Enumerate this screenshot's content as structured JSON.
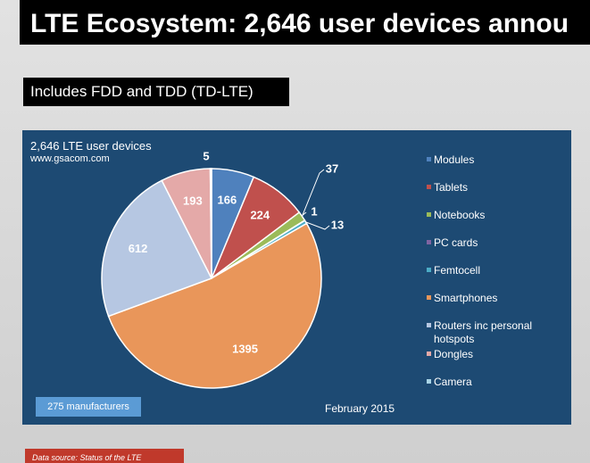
{
  "header": {
    "title": "LTE Ecosystem: 2,646 user devices annou",
    "subtitle": "Includes FDD and TDD (TD-LTE)"
  },
  "chart_data": {
    "type": "pie",
    "title": "2,646 LTE user devices",
    "source": "www.gsacom.com",
    "categories": [
      "Modules",
      "Tablets",
      "Notebooks",
      "PC cards",
      "Femtocell",
      "Smartphones",
      "Routers inc personal hotspots",
      "Dongles",
      "Camera"
    ],
    "values": [
      166,
      224,
      37,
      1,
      13,
      1395,
      612,
      193,
      5
    ],
    "colors": [
      "#4f81bd",
      "#c0504d",
      "#9bbb59",
      "#8064a2",
      "#4bacc6",
      "#e9965a",
      "#b6c7e2",
      "#e4a9a8",
      "#a8d4e6"
    ],
    "note": "275 manufacturers",
    "date": "February 2015"
  },
  "footer": "Data source: Status of the LTE"
}
